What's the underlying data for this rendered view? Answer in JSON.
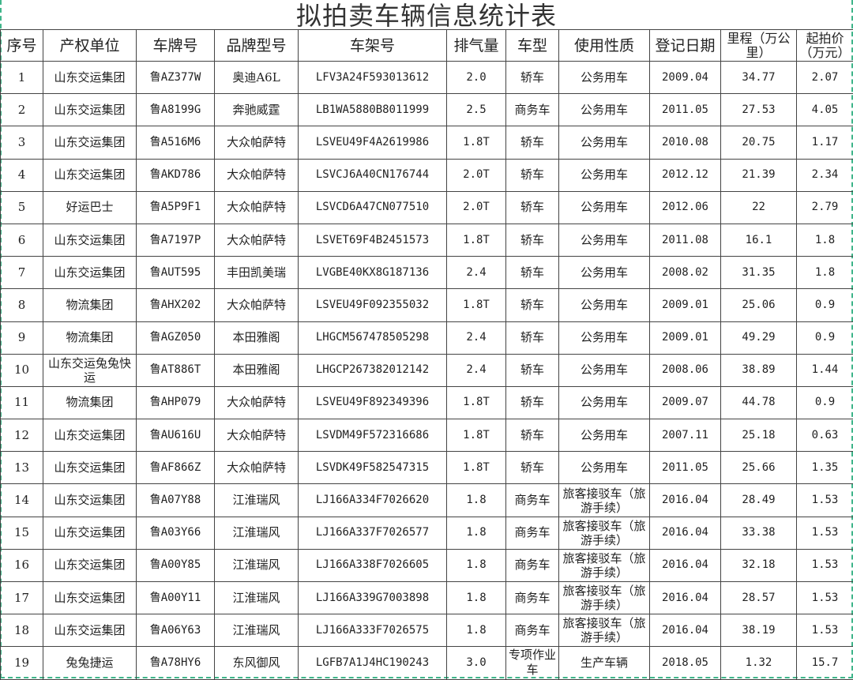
{
  "title": "拟拍卖车辆信息统计表",
  "columns": [
    "序号",
    "产权单位",
    "车牌号",
    "品牌型号",
    "车架号",
    "排气量",
    "车型",
    "使用性质",
    "登记日期",
    "里程（万公里）",
    "起拍价（万元）"
  ],
  "rows": [
    [
      "1",
      "山东交运集团",
      "鲁AZ377W",
      "奥迪A6L",
      "LFV3A24F593013612",
      "2.0",
      "轿车",
      "公务用车",
      "2009.04",
      "34.77",
      "2.07"
    ],
    [
      "2",
      "山东交运集团",
      "鲁A8199G",
      "奔驰威霆",
      "LB1WA5880B8011999",
      "2.5",
      "商务车",
      "公务用车",
      "2011.05",
      "27.53",
      "4.05"
    ],
    [
      "3",
      "山东交运集团",
      "鲁A516M6",
      "大众帕萨特",
      "LSVEU49F4A2619986",
      "1.8T",
      "轿车",
      "公务用车",
      "2010.08",
      "20.75",
      "1.17"
    ],
    [
      "4",
      "山东交运集团",
      "鲁AKD786",
      "大众帕萨特",
      "LSVCJ6A40CN176744",
      "2.0T",
      "轿车",
      "公务用车",
      "2012.12",
      "21.39",
      "2.34"
    ],
    [
      "5",
      "好运巴士",
      "鲁A5P9F1",
      "大众帕萨特",
      "LSVCD6A47CN077510",
      "2.0T",
      "轿车",
      "公务用车",
      "2012.06",
      "22",
      "2.79"
    ],
    [
      "6",
      "山东交运集团",
      "鲁A7197P",
      "大众帕萨特",
      "LSVET69F4B2451573",
      "1.8T",
      "轿车",
      "公务用车",
      "2011.08",
      "16.1",
      "1.8"
    ],
    [
      "7",
      "山东交运集团",
      "鲁AUT595",
      "丰田凯美瑞",
      "LVGBE40KX8G187136",
      "2.4",
      "轿车",
      "公务用车",
      "2008.02",
      "31.35",
      "1.8"
    ],
    [
      "8",
      "物流集团",
      "鲁AHX202",
      "大众帕萨特",
      "LSVEU49F092355032",
      "1.8T",
      "轿车",
      "公务用车",
      "2009.01",
      "25.06",
      "0.9"
    ],
    [
      "9",
      "物流集团",
      "鲁AGZ050",
      "本田雅阁",
      "LHGCM567478505298",
      "2.4",
      "轿车",
      "公务用车",
      "2009.01",
      "49.29",
      "0.9"
    ],
    [
      "10",
      "山东交运兔兔快运",
      "鲁AT886T",
      "本田雅阁",
      "LHGCP267382012142",
      "2.4",
      "轿车",
      "公务用车",
      "2008.06",
      "38.89",
      "1.44"
    ],
    [
      "11",
      "物流集团",
      "鲁AHP079",
      "大众帕萨特",
      "LSVEU49F892349396",
      "1.8T",
      "轿车",
      "公务用车",
      "2009.07",
      "44.78",
      "0.9"
    ],
    [
      "12",
      "山东交运集团",
      "鲁AU616U",
      "大众帕萨特",
      "LSVDM49F572316686",
      "1.8T",
      "轿车",
      "公务用车",
      "2007.11",
      "25.18",
      "0.63"
    ],
    [
      "13",
      "山东交运集团",
      "鲁AF866Z",
      "大众帕萨特",
      "LSVDK49F582547315",
      "1.8T",
      "轿车",
      "公务用车",
      "2011.05",
      "25.66",
      "1.35"
    ],
    [
      "14",
      "山东交运集团",
      "鲁A07Y88",
      "江淮瑞风",
      "LJ166A334F7026620",
      "1.8",
      "商务车",
      "旅客接驳车（旅游手续）",
      "2016.04",
      "28.49",
      "1.53"
    ],
    [
      "15",
      "山东交运集团",
      "鲁A03Y66",
      "江淮瑞风",
      "LJ166A337F7026577",
      "1.8",
      "商务车",
      "旅客接驳车（旅游手续）",
      "2016.04",
      "33.38",
      "1.53"
    ],
    [
      "16",
      "山东交运集团",
      "鲁A00Y85",
      "江淮瑞风",
      "LJ166A338F7026605",
      "1.8",
      "商务车",
      "旅客接驳车（旅游手续）",
      "2016.04",
      "32.18",
      "1.53"
    ],
    [
      "17",
      "山东交运集团",
      "鲁A00Y11",
      "江淮瑞风",
      "LJ166A339G7003898",
      "1.8",
      "商务车",
      "旅客接驳车（旅游手续）",
      "2016.04",
      "28.57",
      "1.53"
    ],
    [
      "18",
      "山东交运集团",
      "鲁A06Y63",
      "江淮瑞风",
      "LJ166A333F7026575",
      "1.8",
      "商务车",
      "旅客接驳车（旅游手续）",
      "2016.04",
      "38.19",
      "1.53"
    ],
    [
      "19",
      "兔兔捷运",
      "鲁A78HY6",
      "东风御风",
      "LGFB7A1J4HC190243",
      "3.0",
      "专项作业车",
      "生产车辆",
      "2018.05",
      "1.32",
      "15.7"
    ]
  ],
  "colors": {
    "border": "#444444",
    "frame": "#3fb58a"
  }
}
